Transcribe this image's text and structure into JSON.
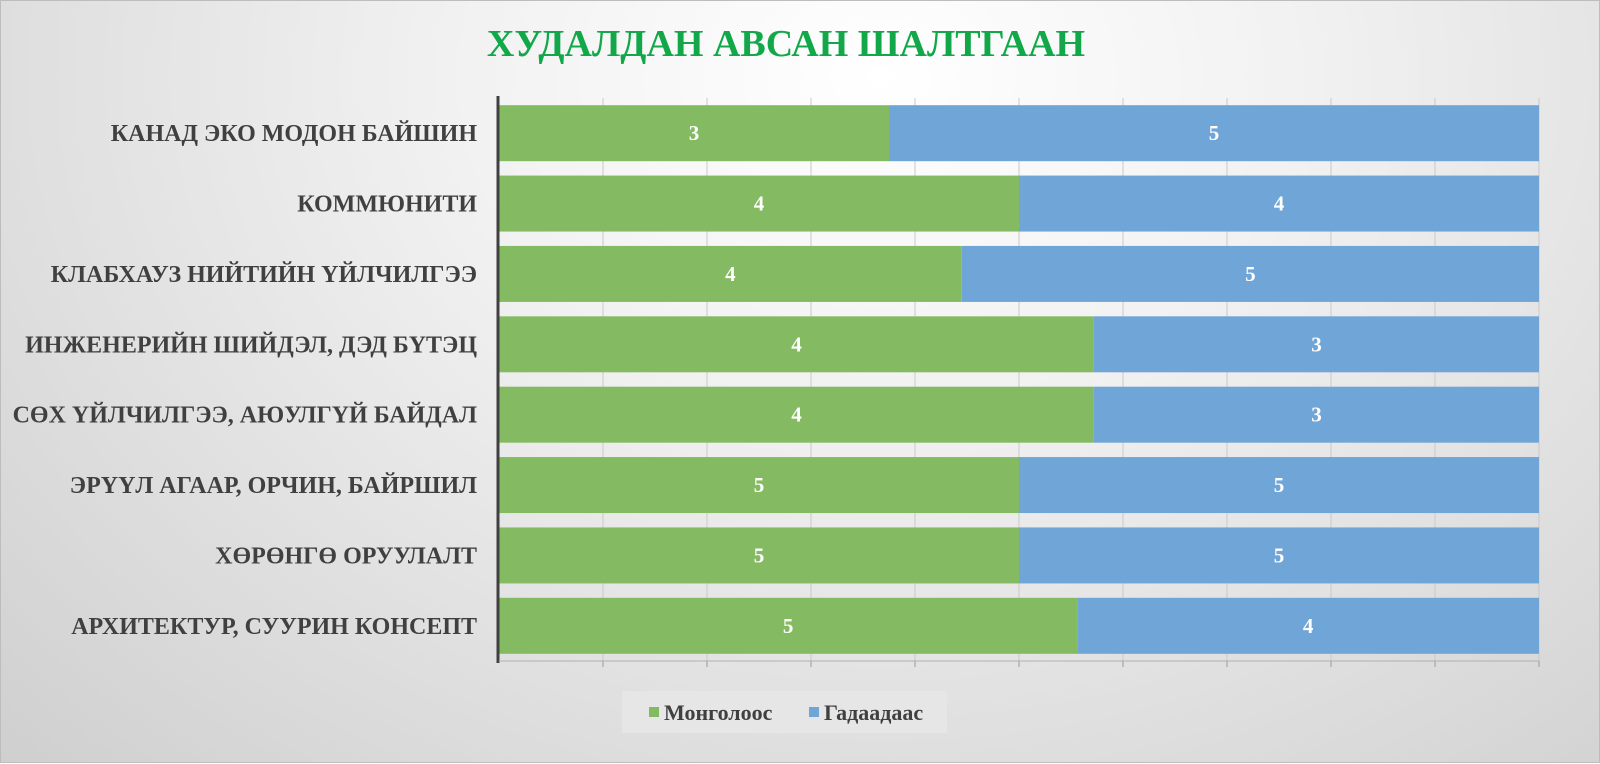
{
  "chart_data": {
    "type": "bar",
    "orientation": "horizontal",
    "stacking": "percent",
    "title": "ХУДАЛДАН АВСАН ШАЛТГААН",
    "categories": [
      "КАНАД ЭКО МОДОН БАЙШИН",
      "КОММЮНИТИ",
      "КЛАБХАУЗ НИЙТИЙН ҮЙЛЧИЛГЭЭ",
      "ИНЖЕНЕРИЙН ШИЙДЭЛ, ДЭД БҮТЭЦ",
      "СӨХ ҮЙЛЧИЛГЭЭ, АЮУЛГҮЙ БАЙДАЛ",
      "ЭРҮҮЛ АГААР, ОРЧИН, БАЙРШИЛ",
      "ХӨРӨНГӨ ОРУУЛАЛТ",
      "АРХИТЕКТУР, СУУРИН КОНСЕПТ"
    ],
    "series": [
      {
        "name": "Монголоос",
        "color": "#84bb62",
        "values": [
          3,
          4,
          4,
          4,
          4,
          5,
          5,
          5
        ],
        "shares": [
          0.375,
          0.5,
          0.445,
          0.572,
          0.572,
          0.5,
          0.5,
          0.556
        ]
      },
      {
        "name": "Гадаадаас",
        "color": "#70a5d8",
        "values": [
          5,
          4,
          5,
          3,
          3,
          5,
          5,
          4
        ],
        "shares": [
          0.625,
          0.5,
          0.555,
          0.428,
          0.428,
          0.5,
          0.5,
          0.444
        ]
      }
    ],
    "legend_position": "bottom",
    "gridlines": true,
    "title_color": "#12a84a",
    "label_color": "#404040"
  }
}
